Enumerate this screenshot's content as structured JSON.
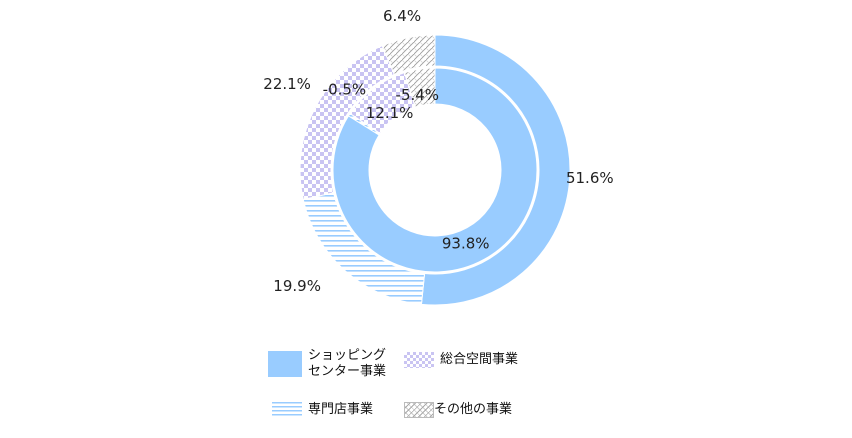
{
  "colors": {
    "shopping": "#99ccff",
    "sogo": "#c9c4f2",
    "senmon": "#99ccff",
    "other": "#aaaaaa"
  },
  "chart_data": {
    "type": "donut",
    "title": "",
    "series": [
      {
        "ring": "outer",
        "values": [
          51.6,
          19.9,
          22.1,
          6.4
        ],
        "labels": [
          "51.6%",
          "19.9%",
          "22.1%",
          "6.4%"
        ]
      },
      {
        "ring": "inner",
        "values": [
          93.8,
          -0.5,
          12.1,
          -5.4
        ],
        "labels": [
          "93.8%",
          "-0.5%",
          "12.1%",
          "-5.4%"
        ]
      }
    ],
    "categories": [
      "ショッピングセンター事業",
      "専門店事業",
      "総合空間事業",
      "その他の事業"
    ],
    "legend": {
      "position": "bottom",
      "items": [
        {
          "line1": "ショッピング",
          "line2": "センター事業"
        },
        {
          "line1": "総合空間事業"
        },
        {
          "line1": "専門店事業"
        },
        {
          "line1": "その他の事業"
        }
      ]
    }
  }
}
